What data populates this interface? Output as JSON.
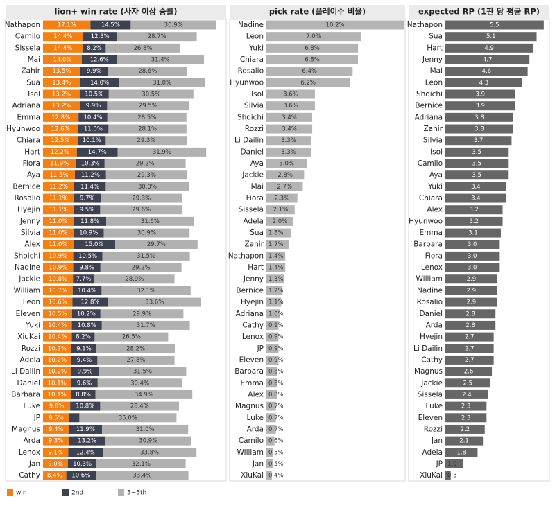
{
  "chart_data": [
    {
      "type": "bar",
      "orientation": "horizontal",
      "stacked": true,
      "title": "lion+ win rate (사자 이상 승률)",
      "categories": [
        "Nathapon",
        "Camilo",
        "Sissela",
        "Mai",
        "Zahir",
        "Sua",
        "Isol",
        "Adriana",
        "Emma",
        "Hyunwoo",
        "Chiara",
        "Hart",
        "Fiora",
        "Aya",
        "Bernice",
        "Rosalio",
        "Hyejin",
        "Jenny",
        "Silvia",
        "Alex",
        "Shoichi",
        "Nadine",
        "Jackie",
        "William",
        "Leon",
        "Eleven",
        "Yuki",
        "XiuKai",
        "Rozzi",
        "Adela",
        "Li Dailin",
        "Daniel",
        "Barbara",
        "Luke",
        "JP",
        "Magnus",
        "Arda",
        "Lenox",
        "Jan",
        "Cathy"
      ],
      "series": [
        {
          "name": "win",
          "color": "#f47f12",
          "values": [
            17.1,
            14.4,
            14.4,
            14.0,
            13.5,
            13.4,
            13.2,
            13.2,
            12.8,
            12.6,
            12.5,
            12.2,
            11.9,
            11.5,
            11.2,
            11.1,
            11.1,
            11.0,
            11.0,
            11.0,
            10.9,
            10.9,
            10.8,
            10.7,
            10.6,
            10.5,
            10.4,
            10.4,
            10.2,
            10.2,
            10.2,
            10.1,
            10.1,
            9.8,
            9.5,
            9.4,
            9.3,
            9.1,
            9.0,
            8.4
          ],
          "value_labels": [
            "17.1%",
            "14.4%",
            "14.4%",
            "14.0%",
            "13.5%",
            "13.4%",
            "13.2%",
            "13.2%",
            "12.8%",
            "12.6%",
            "12.5%",
            "12.2%",
            "11.9%",
            "11.5%",
            "11.2%",
            "11.1%",
            "11.1%",
            "11.0%",
            "11.0%",
            "11.0%",
            "10.9%",
            "10.9%",
            "10.8%",
            "10.7%",
            "10.6%",
            "10.5%",
            "10.4%",
            "10.4%",
            "10.2%",
            "10.2%",
            "10.2%",
            "10.1%",
            "10.1%",
            "9.8%",
            "9.5%",
            "9.4%",
            "9.3%",
            "9.1%",
            "9.0%",
            "8.4%"
          ]
        },
        {
          "name": "2nd",
          "color": "#3d4150",
          "values": [
            14.5,
            12.3,
            8.2,
            12.6,
            9.9,
            14.0,
            10.5,
            9.9,
            10.4,
            11.0,
            10.1,
            14.7,
            10.3,
            11.2,
            11.4,
            9.7,
            9.5,
            11.8,
            10.9,
            15.0,
            10.5,
            9.8,
            7.7,
            10.4,
            12.8,
            10.2,
            10.8,
            8.2,
            9.1,
            9.4,
            9.9,
            9.6,
            8.8,
            10.8,
            3.6,
            11.9,
            13.2,
            12.4,
            10.3,
            10.6
          ],
          "value_labels": [
            "14.5%",
            "12.3%",
            "8.2%",
            "12.6%",
            "9.9%",
            "14.0%",
            "10.5%",
            "9.9%",
            "10.4%",
            "11.0%",
            "10.1%",
            "14.7%",
            "10.3%",
            "11.2%",
            "11.4%",
            "9.7%",
            "9.5%",
            "11.8%",
            "10.9%",
            "15.0%",
            "10.5%",
            "9.8%",
            "7.7%",
            "10.4%",
            "12.8%",
            "10.2%",
            "10.8%",
            "8.2%",
            "9.1%",
            "9.4%",
            "9.9%",
            "9.6%",
            "8.8%",
            "10.8%",
            null,
            "11.9%",
            "13.2%",
            "12.4%",
            "10.3%",
            "10.6%"
          ]
        },
        {
          "name": "3~5th",
          "color": "#b1b1b1",
          "values": [
            30.9,
            28.7,
            26.8,
            31.4,
            28.6,
            31.0,
            30.5,
            29.5,
            28.5,
            28.1,
            29.3,
            31.9,
            29.2,
            29.3,
            30.0,
            29.3,
            29.6,
            31.6,
            30.9,
            29.7,
            31.5,
            29.2,
            28.9,
            32.1,
            33.6,
            29.9,
            31.7,
            26.5,
            28.2,
            27.8,
            31.5,
            30.4,
            34.9,
            28.4,
            35.0,
            31.0,
            30.9,
            33.8,
            32.1,
            33.4
          ],
          "value_labels": [
            "30.9%",
            "28.7%",
            "26.8%",
            "31.4%",
            "28.6%",
            "31.0%",
            "30.5%",
            "29.5%",
            "28.5%",
            "28.1%",
            "29.3%",
            "31.9%",
            "29.2%",
            "29.3%",
            "30.0%",
            "29.3%",
            "29.6%",
            "31.6%",
            "30.9%",
            "29.7%",
            "31.5%",
            "29.2%",
            "28.9%",
            "32.1%",
            "33.6%",
            "29.9%",
            "31.7%",
            "26.5%",
            "28.2%",
            "27.8%",
            "31.5%",
            "30.4%",
            "34.9%",
            "28.4%",
            "35.0%",
            "31.0%",
            "30.9%",
            "33.8%",
            "32.1%",
            "33.4%"
          ]
        }
      ],
      "xlim": [
        0,
        64
      ],
      "legend": "bottom-left"
    },
    {
      "type": "bar",
      "orientation": "horizontal",
      "title": "pick rate (플레이수 비율)",
      "color": "#b4b4b4",
      "categories": [
        "Nadine",
        "Leon",
        "Yuki",
        "Chiara",
        "Rosalio",
        "Hyunwoo",
        "Isol",
        "Silvia",
        "Shoichi",
        "Rozzi",
        "Li Dailin",
        "Daniel",
        "Aya",
        "Jackie",
        "Mai",
        "Fiora",
        "Sissela",
        "Adela",
        "Sua",
        "Zahir",
        "Nathapon",
        "Hart",
        "Jenny",
        "Bernice",
        "Hyejin",
        "Adriana",
        "Cathy",
        "Lenox",
        "JP",
        "Eleven",
        "Barbara",
        "Emma",
        "Alex",
        "Magnus",
        "Luke",
        "Arda",
        "Camilo",
        "William",
        "Jan",
        "XiuKai"
      ],
      "values": [
        10.2,
        7.0,
        6.8,
        6.8,
        6.4,
        6.2,
        3.6,
        3.6,
        3.4,
        3.4,
        3.3,
        3.3,
        3.0,
        2.8,
        2.7,
        2.3,
        2.1,
        2.0,
        1.8,
        1.7,
        1.4,
        1.4,
        1.3,
        1.2,
        1.1,
        1.0,
        0.9,
        0.9,
        0.9,
        0.9,
        0.8,
        0.8,
        0.8,
        0.7,
        0.7,
        0.7,
        0.6,
        0.5,
        0.5,
        0.4
      ],
      "value_labels": [
        "10.2%",
        "7.0%",
        "6.8%",
        "6.8%",
        "6.4%",
        "6.2%",
        "3.6%",
        "3.6%",
        "3.4%",
        "3.4%",
        "3.3%",
        "3.3%",
        "3.0%",
        "2.8%",
        "2.7%",
        "2.3%",
        "2.1%",
        "2.0%",
        "1.8%",
        "1.7%",
        "1.4%",
        "1.4%",
        "1.3%",
        "1.2%",
        "1.1%",
        "1.0%",
        "0.9%",
        "0.9%",
        "0.9%",
        "0.9%",
        "0.8%",
        "0.8%",
        "0.8%",
        "0.7%",
        "0.7%",
        "0.7%",
        "0.6%",
        "0.5%",
        "0.5%",
        "0.4%"
      ],
      "xlim": [
        0,
        10.4
      ]
    },
    {
      "type": "bar",
      "orientation": "horizontal",
      "title": "expected RP (1판 당 평균 RP)",
      "color": "#666666",
      "categories": [
        "Nathapon",
        "Sua",
        "Hart",
        "Jenny",
        "Mai",
        "Leon",
        "Shoichi",
        "Bernice",
        "Adriana",
        "Zahir",
        "Silvia",
        "Isol",
        "Camilo",
        "Aya",
        "Yuki",
        "Chiara",
        "Alex",
        "Hyunwoo",
        "Emma",
        "Barbara",
        "Fiora",
        "Lenox",
        "William",
        "Nadine",
        "Rosalio",
        "Daniel",
        "Arda",
        "Hyejin",
        "Li Dailin",
        "Cathy",
        "Magnus",
        "Jackie",
        "Sissela",
        "Luke",
        "Eleven",
        "Rozzi",
        "Jan",
        "Adela",
        "JP",
        "XiuKai"
      ],
      "values": [
        5.5,
        5.1,
        4.9,
        4.7,
        4.6,
        4.3,
        3.9,
        3.9,
        3.8,
        3.8,
        3.7,
        3.5,
        3.5,
        3.5,
        3.4,
        3.4,
        3.2,
        3.2,
        3.1,
        3.0,
        3.0,
        3.0,
        2.9,
        2.9,
        2.9,
        2.8,
        2.8,
        2.7,
        2.7,
        2.7,
        2.6,
        2.5,
        2.4,
        2.3,
        2.3,
        2.2,
        2.1,
        1.8,
        1.0,
        0.3
      ],
      "value_labels": [
        "5.5",
        "5.1",
        "4.9",
        "4.7",
        "4.6",
        "4.3",
        "3.9",
        "3.9",
        "3.8",
        "3.8",
        "3.7",
        "3.5",
        "3.5",
        "3.5",
        "3.4",
        "3.4",
        "3.2",
        "3.2",
        "3.1",
        "3.0",
        "3.0",
        "3.0",
        "2.9",
        "2.9",
        "2.9",
        "2.8",
        "2.8",
        "2.7",
        "2.7",
        "2.7",
        "2.6",
        "2.5",
        "2.4",
        "2.3",
        "2.3",
        "2.2",
        "2.1",
        "1.8",
        "1.0",
        "0.3"
      ],
      "xlim": [
        0,
        5.7
      ]
    }
  ]
}
